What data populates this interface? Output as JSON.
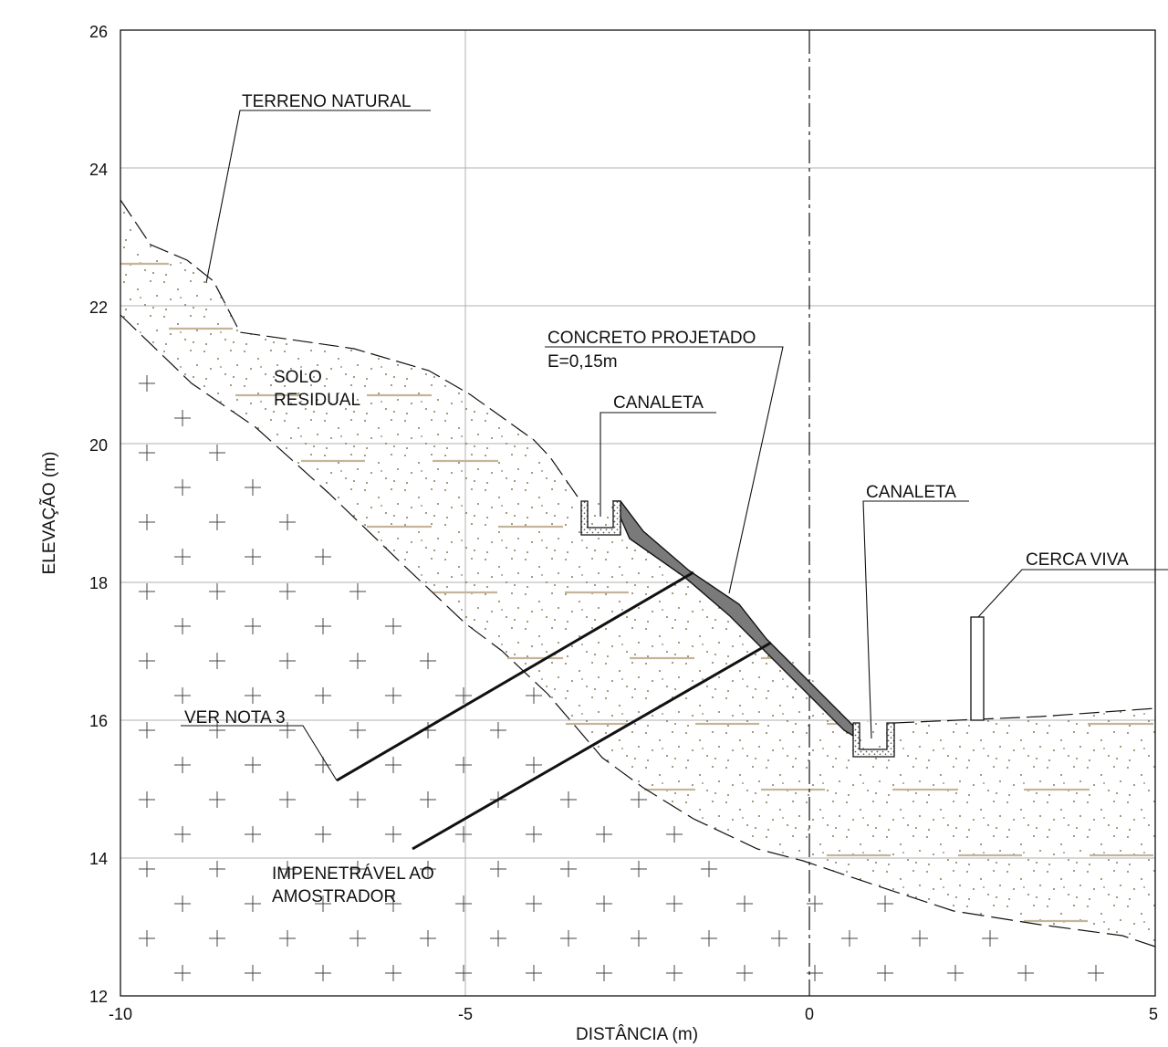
{
  "axes": {
    "x_label": "DISTÂNCIA (m)",
    "y_label": "ELEVAÇÃO (m)",
    "x_ticks": [
      "-10",
      "-5",
      "0",
      "5"
    ],
    "y_ticks": [
      "12",
      "14",
      "16",
      "18",
      "20",
      "22",
      "24",
      "26"
    ],
    "x_range": [
      -10,
      5
    ],
    "y_range": [
      12,
      26
    ]
  },
  "annotations": {
    "terreno_natural": "TERRENO NATURAL",
    "solo_line1": "SOLO",
    "solo_line2": "RESIDUAL",
    "concreto_line1": "CONCRETO PROJETADO",
    "concreto_line2": "E=0,15m",
    "canaleta_top": "CANALETA",
    "canaleta_bottom": "CANALETA",
    "cerca_viva": "CERCA VIVA",
    "ver_nota": "VER NOTA 3",
    "impenetravel_line1": "IMPENETRÁVEL AO",
    "impenetravel_line2": "AMOSTRADOR"
  },
  "colors": {
    "grid": "#b0b0b0",
    "soil_dash": "#c4b59a",
    "soil_dots": "#8a7a5a",
    "concrete": "#777777"
  }
}
